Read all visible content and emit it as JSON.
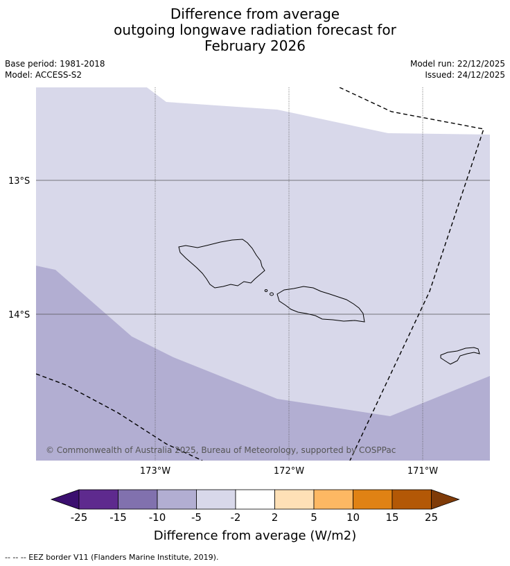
{
  "title": {
    "line1": "Difference from average",
    "line2": "outgoing longwave radiation forecast for",
    "line3": "February 2026"
  },
  "meta": {
    "base_period": "Base period: 1981-2018",
    "model": "Model: ACCESS-S2",
    "model_run": "Model run: 22/12/2025",
    "issued": "Issued: 24/12/2025"
  },
  "map": {
    "lat_labels": [
      "13°S",
      "14°S"
    ],
    "lon_labels": [
      "173°W",
      "172°W",
      "171°W"
    ],
    "copyright": "© Commonwealth of Australia 2025, Bureau of Meteorology, supported by COSPPac",
    "colors": {
      "band_minus2_minus5": "#d8d8ea",
      "band_minus5_minus10": "#b2aed2",
      "coast": "#000000",
      "grid": "#555555"
    }
  },
  "colorbar": {
    "ticks": [
      "-25",
      "-15",
      "-10",
      "-5",
      "-2",
      "2",
      "5",
      "10",
      "15",
      "25"
    ],
    "colors": [
      "#3b0f6f",
      "#5e2a8e",
      "#8171ae",
      "#b2aed2",
      "#d8d8ea",
      "#ffffff",
      "#fee0b6",
      "#fdb863",
      "#e08214",
      "#b35806",
      "#7f3b08"
    ],
    "label": "Difference from average (W/m2)"
  },
  "legend": {
    "eez": "--  --  -- EEZ border V11 (Flanders Marine Institute, 2019)."
  }
}
